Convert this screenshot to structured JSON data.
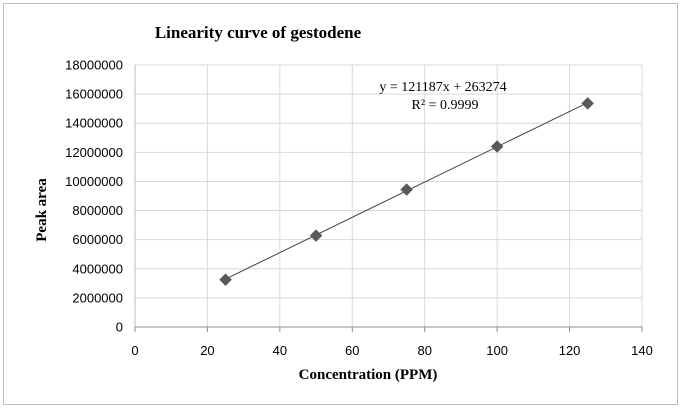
{
  "chart_data": {
    "type": "scatter",
    "title": "Linearity curve of gestodene",
    "xlabel": "Concentration (PPM)",
    "ylabel": "Peak area",
    "xlim": [
      0,
      140
    ],
    "ylim": [
      0,
      18000000
    ],
    "xticks": [
      "0",
      "20",
      "40",
      "60",
      "80",
      "100",
      "120",
      "140"
    ],
    "yticks": [
      "0",
      "2000000",
      "4000000",
      "6000000",
      "8000000",
      "10000000",
      "12000000",
      "14000000",
      "16000000",
      "18000000"
    ],
    "grid": true,
    "series": [
      {
        "x": [
          25,
          50,
          75,
          100,
          125
        ],
        "y": [
          3250000,
          6280000,
          9440000,
          12400000,
          15360000
        ],
        "color": "#595959",
        "marker": "diamond"
      }
    ],
    "trendline": {
      "type": "linear",
      "slope": 121187,
      "intercept": 263274,
      "color": "#404040"
    },
    "annotations": {
      "equation": "y = 121187x + 263274",
      "r_squared": "R² = 0.9999"
    }
  }
}
